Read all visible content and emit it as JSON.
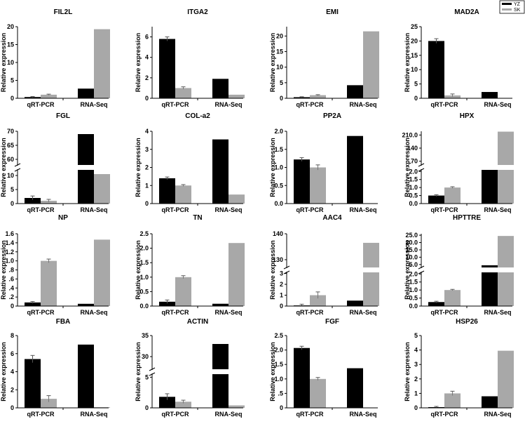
{
  "colors": {
    "YZ": "#000000",
    "SK": "#a8a8a8",
    "axis": "#000000"
  },
  "legend": [
    {
      "label": "YZ",
      "color": "#000000"
    },
    {
      "label": "SK",
      "color": "#a8a8a8"
    }
  ],
  "chart_data": [
    {
      "type": "bar",
      "title": "FIL2L",
      "ylabel": "Relative expression",
      "categories": [
        "qRT-PCR",
        "RNA-Seq"
      ],
      "ylim": [
        0,
        20
      ],
      "yticks": [
        0,
        5,
        10,
        15,
        20
      ],
      "ytick_labels": [
        "0",
        "5",
        "10",
        "15",
        "20"
      ],
      "series": [
        {
          "name": "YZ",
          "values": [
            0.35,
            2.7
          ],
          "errors": [
            0.15,
            0
          ]
        },
        {
          "name": "SK",
          "values": [
            1.0,
            19.3
          ],
          "errors": [
            0.15,
            0
          ]
        }
      ]
    },
    {
      "type": "bar",
      "title": "ITGA2",
      "ylabel": "Relative expression",
      "categories": [
        "qRT-PCR",
        "RNA-Seq"
      ],
      "ylim": [
        0,
        7
      ],
      "yticks": [
        0,
        2,
        4,
        6
      ],
      "ytick_labels": [
        "0",
        "2",
        "4",
        "6"
      ],
      "series": [
        {
          "name": "YZ",
          "values": [
            5.8,
            1.9
          ],
          "errors": [
            0.2,
            0
          ]
        },
        {
          "name": "SK",
          "values": [
            1.0,
            0.35
          ],
          "errors": [
            0.12,
            0
          ]
        }
      ]
    },
    {
      "type": "bar",
      "title": "EMI",
      "ylabel": "Relative expression",
      "categories": [
        "qRT-PCR",
        "RNA-Seq"
      ],
      "ylim": [
        0,
        23
      ],
      "yticks": [
        0,
        5,
        10,
        15,
        20
      ],
      "ytick_labels": [
        "0",
        "5",
        "10",
        "15",
        "20"
      ],
      "series": [
        {
          "name": "YZ",
          "values": [
            0.35,
            4.2
          ],
          "errors": [
            0.15,
            0
          ]
        },
        {
          "name": "SK",
          "values": [
            1.0,
            21.5
          ],
          "errors": [
            0.15,
            0
          ]
        }
      ]
    },
    {
      "type": "bar",
      "title": "MAD2A",
      "ylabel": "Relative expression",
      "categories": [
        "qRT-PCR",
        "RNA-Seq"
      ],
      "ylim": [
        0,
        25
      ],
      "yticks": [
        0,
        5,
        10,
        15,
        20,
        25
      ],
      "ytick_labels": [
        "0",
        "5",
        "10",
        "15",
        "20",
        "25"
      ],
      "series": [
        {
          "name": "YZ",
          "values": [
            20.0,
            2.2
          ],
          "errors": [
            0.8,
            0
          ]
        },
        {
          "name": "SK",
          "values": [
            1.0,
            0
          ],
          "errors": [
            0.5,
            0
          ]
        }
      ]
    },
    {
      "type": "bar",
      "title": "FGL",
      "ylabel": "Relative expression",
      "categories": [
        "qRT-PCR",
        "RNA-Seq"
      ],
      "ylim": [
        0,
        70
      ],
      "axis_break": {
        "lower": [
          0,
          12
        ],
        "upper": [
          58,
          70
        ]
      },
      "yticks": [
        0,
        5,
        10,
        60,
        65,
        70
      ],
      "ytick_labels": [
        "0",
        "5",
        "10",
        "60",
        "65",
        "70"
      ],
      "series": [
        {
          "name": "YZ",
          "values": [
            2.0,
            69.0
          ],
          "errors": [
            0.7,
            0
          ]
        },
        {
          "name": "SK",
          "values": [
            1.0,
            10.5
          ],
          "errors": [
            0.5,
            0
          ]
        }
      ]
    },
    {
      "type": "bar",
      "title": "COL-a2",
      "ylabel": "Relative expression",
      "categories": [
        "qRT-PCR",
        "RNA-Seq"
      ],
      "ylim": [
        0,
        4
      ],
      "yticks": [
        0,
        1,
        2,
        3,
        4
      ],
      "ytick_labels": [
        "0",
        "1",
        "2",
        "3",
        "4"
      ],
      "series": [
        {
          "name": "YZ",
          "values": [
            1.4,
            3.55
          ],
          "errors": [
            0.07,
            0
          ]
        },
        {
          "name": "SK",
          "values": [
            1.0,
            0.5
          ],
          "errors": [
            0.05,
            0
          ]
        }
      ]
    },
    {
      "type": "bar",
      "title": "PP2A",
      "ylabel": "Relative expression",
      "categories": [
        "qRT-PCR",
        "RNA-Seq"
      ],
      "ylim": [
        0,
        2.0
      ],
      "yticks": [
        0,
        0.5,
        1.0,
        1.5,
        2.0
      ],
      "ytick_labels": [
        "0.0",
        "0.5",
        "1.0",
        "1.5",
        "2.0"
      ],
      "series": [
        {
          "name": "YZ",
          "values": [
            1.22,
            1.87
          ],
          "errors": [
            0.05,
            0
          ]
        },
        {
          "name": "SK",
          "values": [
            1.0,
            0
          ],
          "errors": [
            0.07,
            0
          ]
        }
      ]
    },
    {
      "type": "bar",
      "title": "HPX",
      "ylabel": "Relative expression",
      "categories": [
        "qRT-PCR",
        "RNA-Seq"
      ],
      "ylim": [
        0,
        230
      ],
      "axis_break": {
        "lower": [
          0,
          2.1
        ],
        "upper": [
          50,
          230
        ]
      },
      "yticks": [
        0,
        0.5,
        1.0,
        1.5,
        2.0,
        70,
        140,
        210
      ],
      "ytick_labels": [
        "0.0",
        "0.5",
        "1.0",
        "1.5",
        "2.0",
        "70",
        "140",
        "210.0"
      ],
      "series": [
        {
          "name": "YZ",
          "values": [
            0.5,
            2.35
          ],
          "errors": [
            0.05,
            0
          ]
        },
        {
          "name": "SK",
          "values": [
            1.0,
            228
          ],
          "errors": [
            0.05,
            0
          ]
        }
      ]
    },
    {
      "type": "bar",
      "title": "NP",
      "ylabel": "Relative expression",
      "categories": [
        "qRT-PCR",
        "RNA-Seq"
      ],
      "ylim": [
        0,
        1.6
      ],
      "yticks": [
        0,
        0.2,
        0.4,
        0.6,
        0.8,
        1.0,
        1.2,
        1.4,
        1.6
      ],
      "ytick_labels": [
        "0",
        ".2",
        ".4",
        ".6",
        ".8",
        "1.0",
        "1.2",
        "1.4",
        "1.6"
      ],
      "series": [
        {
          "name": "YZ",
          "values": [
            0.08,
            0.05
          ],
          "errors": [
            0.02,
            0
          ]
        },
        {
          "name": "SK",
          "values": [
            1.0,
            1.47
          ],
          "errors": [
            0.04,
            0
          ]
        }
      ]
    },
    {
      "type": "bar",
      "title": "TN",
      "ylabel": "Relative expression",
      "categories": [
        "qRT-PCR",
        "RNA-Seq"
      ],
      "ylim": [
        0,
        2.5
      ],
      "yticks": [
        0,
        0.5,
        1.0,
        1.5,
        2.0,
        2.5
      ],
      "ytick_labels": [
        "0.0",
        "0.5",
        "1.0",
        "1.5",
        "2.0",
        "2.5"
      ],
      "series": [
        {
          "name": "YZ",
          "values": [
            0.15,
            0.08
          ],
          "errors": [
            0.06,
            0
          ]
        },
        {
          "name": "SK",
          "values": [
            1.0,
            2.18
          ],
          "errors": [
            0.05,
            0
          ]
        }
      ]
    },
    {
      "type": "bar",
      "title": "AAC4",
      "ylabel": "Relative expression",
      "categories": [
        "qRT-PCR",
        "RNA-Seq"
      ],
      "ylim": [
        0,
        140
      ],
      "axis_break": {
        "lower": [
          0,
          3.1
        ],
        "upper": [
          127,
          140
        ]
      },
      "yticks": [
        0,
        1,
        2,
        3,
        130,
        140
      ],
      "ytick_labels": [
        "0",
        "1",
        "2",
        "3",
        "130",
        "140"
      ],
      "series": [
        {
          "name": "YZ",
          "values": [
            0.05,
            0.5
          ],
          "errors": [
            0.12,
            0
          ]
        },
        {
          "name": "SK",
          "values": [
            1.0,
            136.5
          ],
          "errors": [
            0.3,
            0
          ]
        }
      ]
    },
    {
      "type": "bar",
      "title": "HPTTRE",
      "ylabel": "Relative expression",
      "categories": [
        "qRT-PCR",
        "RNA-Seq"
      ],
      "ylim": [
        0,
        25
      ],
      "axis_break": {
        "lower": [
          0,
          2.1
        ],
        "upper": [
          3,
          26
        ]
      },
      "yticks": [
        0,
        0.5,
        1.0,
        1.5,
        2.0,
        5,
        10,
        15,
        20,
        25
      ],
      "ytick_labels": [
        "0.0",
        "0.5",
        "1.0",
        "1.5",
        "2.0",
        "5.0",
        "10.0",
        "15.0",
        "20.0",
        "25.0"
      ],
      "series": [
        {
          "name": "YZ",
          "values": [
            0.25,
            4.5
          ],
          "errors": [
            0.05,
            0
          ]
        },
        {
          "name": "SK",
          "values": [
            1.0,
            24.5
          ],
          "errors": [
            0.04,
            0
          ]
        }
      ]
    },
    {
      "type": "bar",
      "title": "FBA",
      "ylabel": "Relative expression",
      "categories": [
        "qRT-PCR",
        "RNA-Seq"
      ],
      "ylim": [
        0,
        8
      ],
      "yticks": [
        0,
        2,
        4,
        6,
        8
      ],
      "ytick_labels": [
        "0",
        "2",
        "4",
        "6",
        "8"
      ],
      "series": [
        {
          "name": "YZ",
          "values": [
            5.4,
            7.0
          ],
          "errors": [
            0.4,
            0
          ]
        },
        {
          "name": "SK",
          "values": [
            1.0,
            0.05
          ],
          "errors": [
            0.35,
            0
          ]
        }
      ]
    },
    {
      "type": "bar",
      "title": "ACTIN",
      "ylabel": "Relative expression",
      "categories": [
        "qRT-PCR",
        "RNA-Seq"
      ],
      "ylim": [
        0,
        35
      ],
      "axis_break": {
        "lower": [
          0,
          5.5
        ],
        "upper": [
          27,
          35
        ]
      },
      "yticks": [
        0,
        5,
        30,
        35
      ],
      "ytick_labels": [
        "0",
        "5",
        "30",
        "35"
      ],
      "series": [
        {
          "name": "YZ",
          "values": [
            1.8,
            33.0
          ],
          "errors": [
            0.5,
            0
          ]
        },
        {
          "name": "SK",
          "values": [
            1.0,
            0.4
          ],
          "errors": [
            0.25,
            0
          ]
        }
      ]
    },
    {
      "type": "bar",
      "title": "FGF",
      "ylabel": "Relative expression",
      "categories": [
        "qRT-PCR",
        "RNA-Seq"
      ],
      "ylim": [
        0,
        2.5
      ],
      "yticks": [
        0,
        0.5,
        1.0,
        1.5,
        2.0,
        2.5
      ],
      "ytick_labels": [
        "0",
        ".5",
        "1.0",
        "1.5",
        "2.0",
        "2.5"
      ],
      "series": [
        {
          "name": "YZ",
          "values": [
            2.07,
            1.37
          ],
          "errors": [
            0.06,
            0
          ]
        },
        {
          "name": "SK",
          "values": [
            1.0,
            0
          ],
          "errors": [
            0.05,
            0
          ]
        }
      ]
    },
    {
      "type": "bar",
      "title": "HSP26",
      "ylabel": "Relative expression",
      "categories": [
        "qRT-PCR",
        "RNA-Seq"
      ],
      "ylim": [
        0,
        5
      ],
      "yticks": [
        0,
        1,
        2,
        3,
        4,
        5
      ],
      "ytick_labels": [
        "0",
        "1",
        "2",
        "3",
        "4",
        "5"
      ],
      "series": [
        {
          "name": "YZ",
          "values": [
            0.05,
            0.8
          ],
          "errors": [
            0.05,
            0
          ]
        },
        {
          "name": "SK",
          "values": [
            1.0,
            3.95
          ],
          "errors": [
            0.15,
            0
          ]
        }
      ]
    }
  ]
}
